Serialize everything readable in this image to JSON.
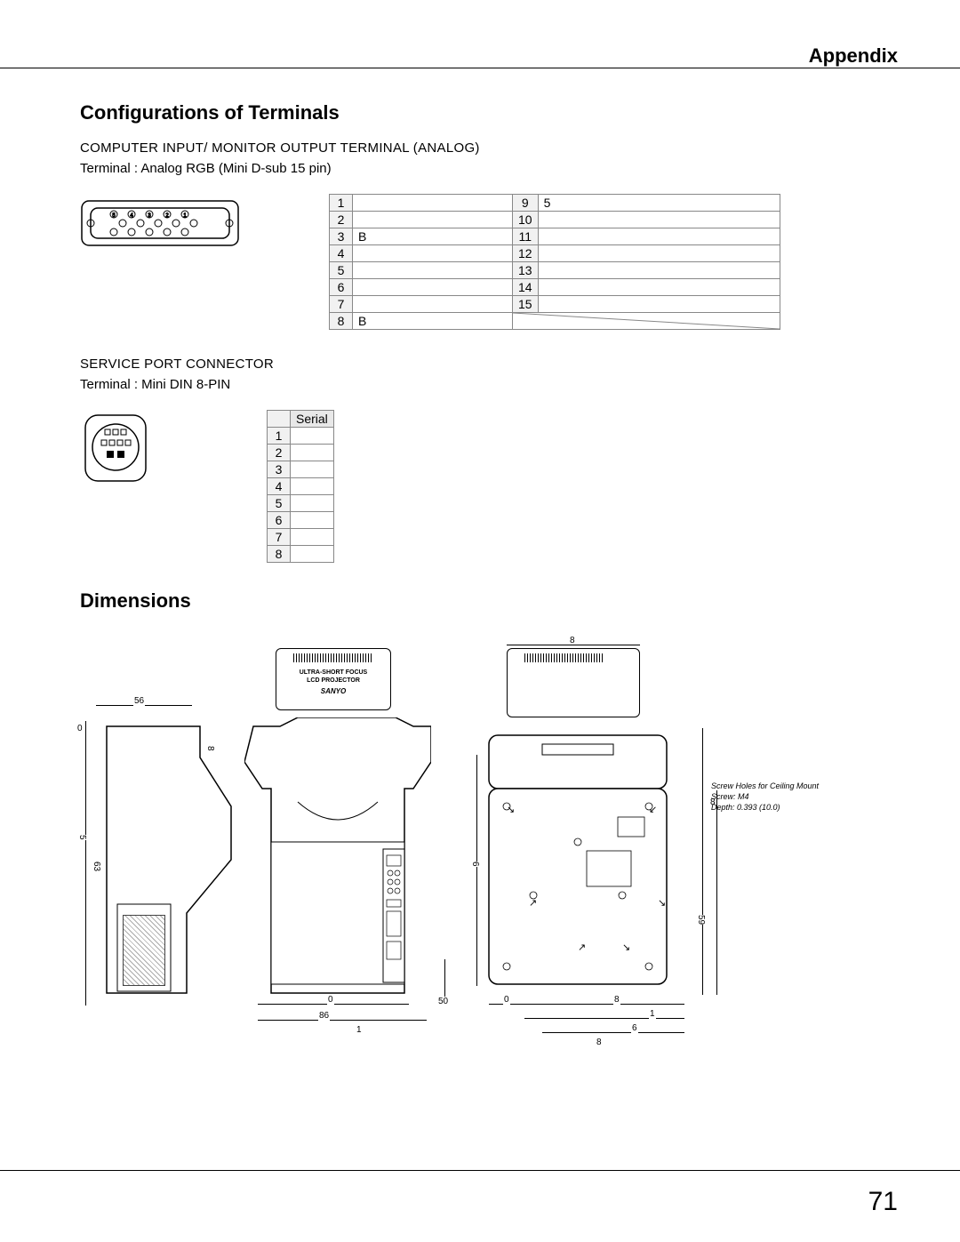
{
  "header": {
    "appendix": "Appendix"
  },
  "section1": {
    "title": "Configurations of Terminals",
    "block1": {
      "line1": "COMPUTER INPUT/ MONITOR OUTPUT TERMINAL (ANALOG)",
      "line2": "Terminal : Analog RGB (Mini D-sub 15 pin)",
      "pins_left": [
        [
          "1",
          ""
        ],
        [
          "2",
          ""
        ],
        [
          "3",
          "B"
        ],
        [
          "4",
          ""
        ],
        [
          "5",
          ""
        ],
        [
          "6",
          ""
        ],
        [
          "7",
          ""
        ],
        [
          "8",
          "B"
        ]
      ],
      "pins_right": [
        [
          "9",
          "5"
        ],
        [
          "10",
          ""
        ],
        [
          "11",
          ""
        ],
        [
          "12",
          ""
        ],
        [
          "13",
          ""
        ],
        [
          "14",
          ""
        ],
        [
          "15",
          ""
        ]
      ]
    },
    "block2": {
      "line1": "SERVICE PORT CONNECTOR",
      "line2": "Terminal : Mini DIN 8-PIN",
      "header": "Serial",
      "rows": [
        "1",
        "2",
        "3",
        "4",
        "5",
        "6",
        "7",
        "8"
      ]
    }
  },
  "section2": {
    "title": "Dimensions"
  },
  "diagram": {
    "text_top_label": "ULTRA-SHORT FOCUS",
    "text_top_label2": "LCD PROJECTOR",
    "brand": "SANYO",
    "note1": "Screw Holes for Ceiling Mount",
    "note2": "Screw: M4",
    "note3": "Depth: 0.393 (10.0)",
    "dim_values": [
      "8",
      "56",
      "0",
      "5",
      "63",
      "8",
      "0",
      "86",
      "1",
      "50",
      "0",
      "6",
      "8",
      "1",
      "6",
      "8",
      "59",
      "8"
    ]
  },
  "page": {
    "number": "71"
  },
  "style": {
    "text_color": "#000000",
    "grid_color": "#888888",
    "header_bg": "#e8e8e8",
    "numcell_bg": "#f1f1f1",
    "fontsize_h": 22,
    "fontsize_body": 15,
    "fontsize_table": 14,
    "fontsize_tiny": 9,
    "fontsize_pagenum": 30
  }
}
